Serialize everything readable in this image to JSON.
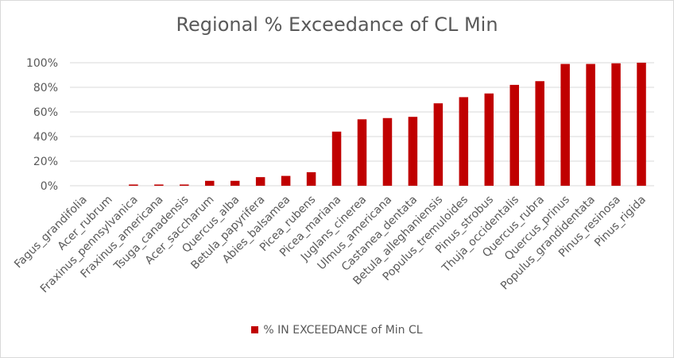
{
  "chart_data": {
    "type": "bar",
    "title": "Regional % Exceedance of CL Min",
    "xlabel": "",
    "ylabel": "",
    "ylim": [
      0,
      100
    ],
    "y_ticks": [
      "0%",
      "20%",
      "40%",
      "60%",
      "80%",
      "100%"
    ],
    "grid": true,
    "legend_position": "bottom",
    "series_color": "#c00000",
    "categories": [
      "Fagus_grandifolia",
      "Acer_rubrum",
      "Fraxinus_pennsylvanica",
      "Fraxinus_americana",
      "Tsuga_canadensis",
      "Acer_saccharum",
      "Quercus_alba",
      "Betula_papyrifera",
      "Abies_balsamea",
      "Picea_rubens",
      "Picea_mariana",
      "Juglans_cinerea",
      "Ulmus_americana",
      "Castanea_dentata",
      "Betula_alleghaniensis",
      "Populus_tremuloides",
      "Pinus_strobus",
      "Thuja_occidentalis",
      "Quercus_rubra",
      "Quercus_prinus",
      "Populus_grandidentata",
      "Pinus_resinosa",
      "Pinus_rigida"
    ],
    "series": [
      {
        "name": "% IN EXCEEDANCE of Min CL",
        "values": [
          0,
          0,
          1,
          1,
          1,
          4,
          4,
          7,
          8,
          11,
          44,
          54,
          55,
          56,
          67,
          72,
          75,
          82,
          85,
          99,
          99,
          99.5,
          100
        ]
      }
    ]
  }
}
